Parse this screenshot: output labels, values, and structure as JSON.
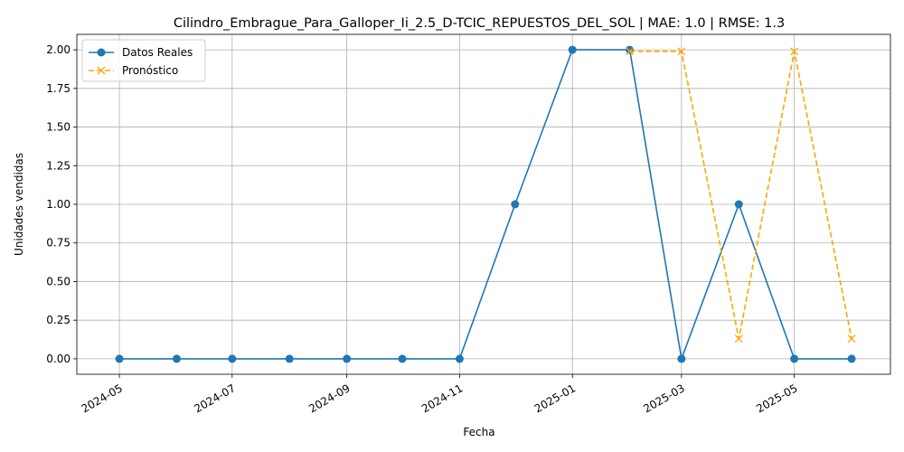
{
  "chart_data": {
    "type": "line",
    "title": "Cilindro_Embrague_Para_Galloper_Ii_2.5_D-TCIC_REPUESTOS_DEL_SOL | MAE: 1.0 | RMSE: 1.3",
    "xlabel": "Fecha",
    "ylabel": "Unidades vendidas",
    "xlim": [
      "2024-04-08",
      "2025-06-22"
    ],
    "ylim": [
      -0.1,
      2.1
    ],
    "x_ticks": [
      "2024-05-01",
      "2024-07-01",
      "2024-09-01",
      "2024-11-01",
      "2025-01-01",
      "2025-03-01",
      "2025-05-01"
    ],
    "x_tick_labels": [
      "2024-05",
      "2024-07",
      "2024-09",
      "2024-11",
      "2025-01",
      "2025-03",
      "2025-05"
    ],
    "y_ticks": [
      0.0,
      0.25,
      0.5,
      0.75,
      1.0,
      1.25,
      1.5,
      1.75,
      2.0
    ],
    "y_tick_labels": [
      "0.00",
      "0.25",
      "0.50",
      "0.75",
      "1.00",
      "1.25",
      "1.50",
      "1.75",
      "2.00"
    ],
    "grid": true,
    "legend_position": "top-left",
    "series": [
      {
        "name": "Datos Reales",
        "color": "#1f77b4",
        "style": "solid",
        "marker": "circle",
        "x": [
          "2024-05-01",
          "2024-06-01",
          "2024-07-01",
          "2024-08-01",
          "2024-09-01",
          "2024-10-01",
          "2024-11-01",
          "2024-12-01",
          "2025-01-01",
          "2025-02-01",
          "2025-03-01",
          "2025-04-01",
          "2025-05-01",
          "2025-06-01"
        ],
        "values": [
          0,
          0,
          0,
          0,
          0,
          0,
          0,
          1,
          2,
          2,
          0,
          1,
          0,
          0
        ]
      },
      {
        "name": "Pronóstico",
        "color": "#ffa500",
        "style": "dashed",
        "marker": "x",
        "x": [
          "2025-02-01",
          "2025-03-01",
          "2025-04-01",
          "2025-05-01",
          "2025-06-01"
        ],
        "values": [
          1.99,
          1.99,
          0.13,
          1.99,
          0.13
        ]
      }
    ]
  }
}
